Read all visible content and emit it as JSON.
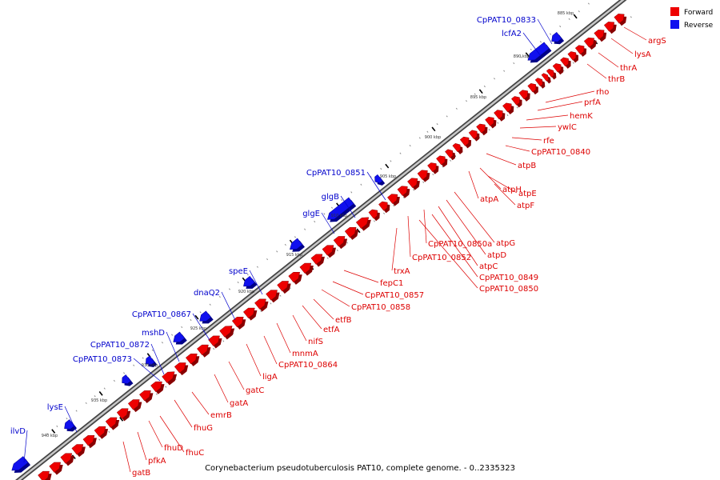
{
  "caption": "Corynebacterium pseudotuberculosis PAT10, complete genome. - 0..2335323",
  "legend": {
    "forward": {
      "label": "Forward",
      "color": "#ee0000"
    },
    "reverse": {
      "label": "Reverse",
      "color": "#1010ee"
    }
  },
  "ticks": [
    "885 kbp",
    "890 kbp",
    "895 kbp",
    "900 kbp",
    "905 kbp",
    "910 kbp",
    "915 kbp",
    "920 kbp",
    "925 kbp",
    "930 kbp",
    "935 kbp",
    "940 kbp"
  ],
  "reverse_labels": [
    "CpPAT10_0833",
    "lcfA2",
    "CpPAT10_0851",
    "glgB",
    "glgE",
    "speE",
    "dnaQ2",
    "CpPAT10_0867",
    "mshD",
    "CpPAT10_0872",
    "CpPAT10_0873",
    "lysE",
    "ilvD"
  ],
  "forward_labels": [
    "argS",
    "lysA",
    "thrA",
    "thrB",
    "rho",
    "prfA",
    "hemK",
    "ywlC",
    "rfe",
    "CpPAT10_0840",
    "atpB",
    "atpH",
    "atpE",
    "atpF",
    "atpA",
    "atpG",
    "atpD",
    "atpC",
    "CpPAT10_0850a",
    "CpPAT10_0852",
    "CpPAT10_0849",
    "CpPAT10_0850",
    "trxA",
    "fepC1",
    "CpPAT10_0857",
    "CpPAT10_0858",
    "etfB",
    "etfA",
    "nifS",
    "mnmA",
    "CpPAT10_0864",
    "ligA",
    "gatC",
    "gatA",
    "emrB",
    "fhuG",
    "fhuC",
    "fhuD",
    "pfkA",
    "gatB"
  ]
}
